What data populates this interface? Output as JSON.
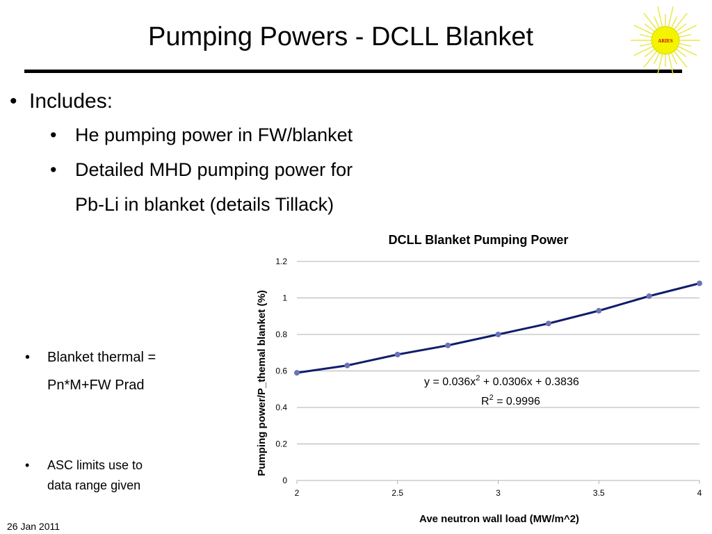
{
  "slide": {
    "title": "Pumping Powers - DCLL Blanket",
    "logo_text": "ARIES",
    "bullets": {
      "main": "Includes:",
      "sub1": "He pumping power in FW/blanket",
      "sub2_line1": "Detailed MHD pumping power for",
      "sub2_line2": "Pb-Li in blanket (details Tillack)"
    },
    "side_notes": {
      "note1_line1": "Blanket thermal =",
      "note1_line2": "Pn*M+FW Prad",
      "note2_line1": "ASC limits use to",
      "note2_line2": "data range given"
    },
    "bullet_glyph": "•",
    "footer_date": "26 Jan 2011"
  },
  "chart_data": {
    "type": "scatter",
    "title": "DCLL Blanket Pumping Power",
    "xlabel": "Ave neutron wall load (MW/m^2)",
    "ylabel": "Pumping power/P_themal blanket (%)",
    "xlim": [
      2,
      4
    ],
    "ylim": [
      0,
      1.2
    ],
    "x_ticks": [
      "2",
      "2.5",
      "3",
      "3.5",
      "4"
    ],
    "y_ticks": [
      "0",
      "0.2",
      "0.4",
      "0.6",
      "0.8",
      "1",
      "1.2"
    ],
    "grid": "horizontal",
    "series": [
      {
        "x": [
          2,
          2.25,
          2.5,
          2.75,
          3,
          3.25,
          3.5,
          3.75,
          4
        ],
        "y": [
          0.59,
          0.63,
          0.69,
          0.74,
          0.8,
          0.86,
          0.93,
          1.01,
          1.08
        ]
      }
    ],
    "trendline": {
      "type": "polynomial",
      "coefficients": {
        "a": 0.036,
        "b": 0.0306,
        "c": 0.3836
      },
      "equation_prefix": "y = 0.036x",
      "equation_mid": " + 0.0306x + 0.3836",
      "equation_sup": "2",
      "r2_prefix": "R",
      "r2_sup": "2",
      "r2_value": " = 0.9996"
    },
    "colors": {
      "line": "#101d6b",
      "marker": "#6a73b8",
      "grid": "#b0b0b0"
    }
  }
}
